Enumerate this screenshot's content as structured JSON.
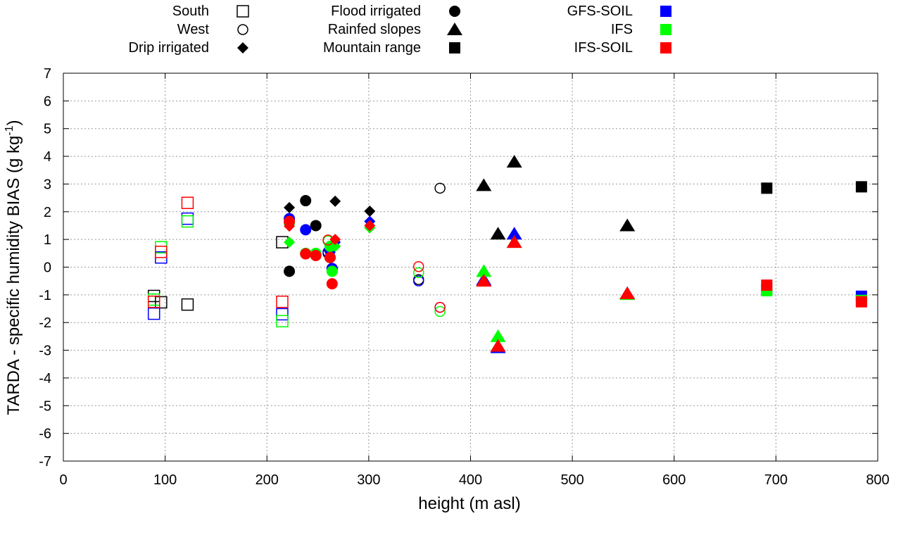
{
  "chart_data": {
    "type": "scatter",
    "xlabel": "height (m asl)",
    "ylabel": "TARDA - specific humidity BIAS (g kg",
    "ylabel_sup": "-1",
    "ylabel_end": ")",
    "xlim": [
      0,
      800
    ],
    "ylim": [
      -7,
      7
    ],
    "xticks": [
      0,
      100,
      200,
      300,
      400,
      500,
      600,
      700,
      800
    ],
    "yticks": [
      -7,
      -6,
      -5,
      -4,
      -3,
      -2,
      -1,
      0,
      1,
      2,
      3,
      4,
      5,
      6,
      7
    ],
    "grid": true,
    "legend_placement": "top",
    "site_legend": [
      {
        "label": "South",
        "marker": "open-square"
      },
      {
        "label": "West",
        "marker": "open-circle"
      },
      {
        "label": "Drip irrigated",
        "marker": "diamond"
      },
      {
        "label": "Flood irrigated",
        "marker": "circle"
      },
      {
        "label": "Rainfed slopes",
        "marker": "triangle"
      },
      {
        "label": "Mountain range",
        "marker": "square"
      }
    ],
    "model_legend": [
      {
        "label": "GFS-SOIL",
        "color": "#0000ff"
      },
      {
        "label": "IFS",
        "color": "#00ff00"
      },
      {
        "label": "IFS-SOIL",
        "color": "#ff0000"
      }
    ],
    "colors": {
      "black": "#000000",
      "blue": "#0000ff",
      "green": "#00ff00",
      "red": "#ff0000"
    },
    "points": [
      {
        "group": "South",
        "x": 89,
        "black": -1.04,
        "green": -1.17,
        "red": -1.25,
        "blue": -1.68
      },
      {
        "group": "South",
        "x": 96,
        "black": -1.27,
        "green": 0.72,
        "red": 0.55,
        "blue": 0.35
      },
      {
        "group": "South",
        "x": 122,
        "black": -1.35,
        "blue": 1.75,
        "green": 1.65,
        "red": 2.32
      },
      {
        "group": "South",
        "x": 215,
        "black": 0.9,
        "red": -1.25,
        "blue": -1.7,
        "green": -1.95
      },
      {
        "group": "West",
        "x": 260,
        "black": 0.5,
        "blue": 0.55,
        "green": 0.95,
        "red": 0.98
      },
      {
        "group": "West",
        "x": 349,
        "black": -0.45,
        "blue": -0.5,
        "green": -0.2,
        "red": 0.02
      },
      {
        "group": "West",
        "x": 370,
        "black": 2.85,
        "blue": -1.45,
        "green": -1.6,
        "red": -1.45
      },
      {
        "group": "Drip irrigated",
        "x": 222,
        "black": 2.15,
        "blue": 1.55,
        "green": 0.9,
        "red": 1.48
      },
      {
        "group": "Drip irrigated",
        "x": 267,
        "black": 2.38,
        "blue": 0.9,
        "green": 0.75,
        "red": 1.0
      },
      {
        "group": "Drip irrigated",
        "x": 301,
        "black": 2.02,
        "blue": 1.65,
        "green": 1.42,
        "red": 1.5
      },
      {
        "group": "Flood irrigated",
        "x": 222,
        "black": -0.15,
        "blue": 1.75,
        "green": 1.6,
        "red": 1.65
      },
      {
        "group": "Flood irrigated",
        "x": 238,
        "black": 2.4,
        "blue": 1.35,
        "green": 0.5,
        "red": 0.48
      },
      {
        "group": "Flood irrigated",
        "x": 248,
        "black": 1.5,
        "blue": 0.45,
        "green": 0.5,
        "red": 0.42
      },
      {
        "group": "Flood irrigated",
        "x": 262,
        "black": 0.35,
        "blue": 0.6,
        "green": 0.75,
        "red": 0.35
      },
      {
        "group": "Flood irrigated",
        "x": 264,
        "black": -0.05,
        "blue": -0.05,
        "green": -0.15,
        "red": -0.6
      },
      {
        "group": "Rainfed slopes",
        "x": 413,
        "black": 2.95,
        "blue": -0.45,
        "green": -0.15,
        "red": -0.5
      },
      {
        "group": "Rainfed slopes",
        "x": 427,
        "black": 1.2,
        "blue": -2.9,
        "green": -2.5,
        "red": -2.85
      },
      {
        "group": "Rainfed slopes",
        "x": 443,
        "black": 3.8,
        "blue": 1.2,
        "green": 0.9,
        "red": 0.9
      },
      {
        "group": "Rainfed slopes",
        "x": 554,
        "black": 1.5,
        "blue": -0.95,
        "green": -0.98,
        "red": -0.95
      },
      {
        "group": "Mountain range",
        "x": 691,
        "black": 2.85,
        "blue": -0.8,
        "green": -0.85,
        "red": -0.65
      },
      {
        "group": "Mountain range",
        "x": 784,
        "black": 2.9,
        "blue": -1.05,
        "green": -1.2,
        "red": -1.25
      }
    ]
  }
}
